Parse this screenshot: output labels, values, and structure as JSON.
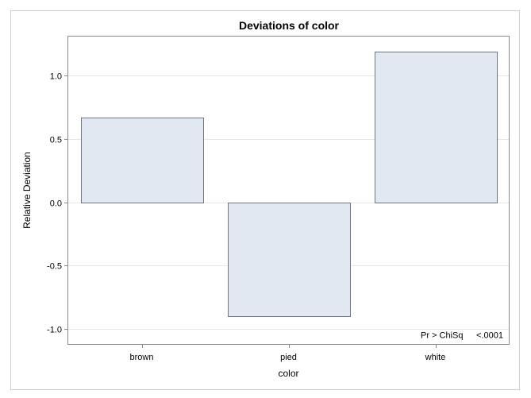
{
  "chart_data": {
    "type": "bar",
    "title": "Deviations of color",
    "xlabel": "color",
    "ylabel": "Relative Deviation",
    "categories": [
      "brown",
      "pied",
      "white"
    ],
    "values": [
      0.67,
      -0.9,
      1.19
    ],
    "ylim": [
      -1.12,
      1.31
    ],
    "yticks": [
      -1.0,
      -0.5,
      0.0,
      0.5,
      1.0
    ],
    "ytick_labels": [
      "-1.0",
      "-0.5",
      "0.0",
      "0.5",
      "1.0"
    ],
    "grid": "horizontal",
    "legend": "none",
    "inset_label": "Pr > ChiSq",
    "inset_value": "<.0001",
    "colors": {
      "bar_fill": "#e2e8f1",
      "bar_stroke": "#6f7680",
      "grid": "#e6e6e6",
      "axis": "#8a8a8a",
      "frame": "#cfcfcf"
    }
  }
}
